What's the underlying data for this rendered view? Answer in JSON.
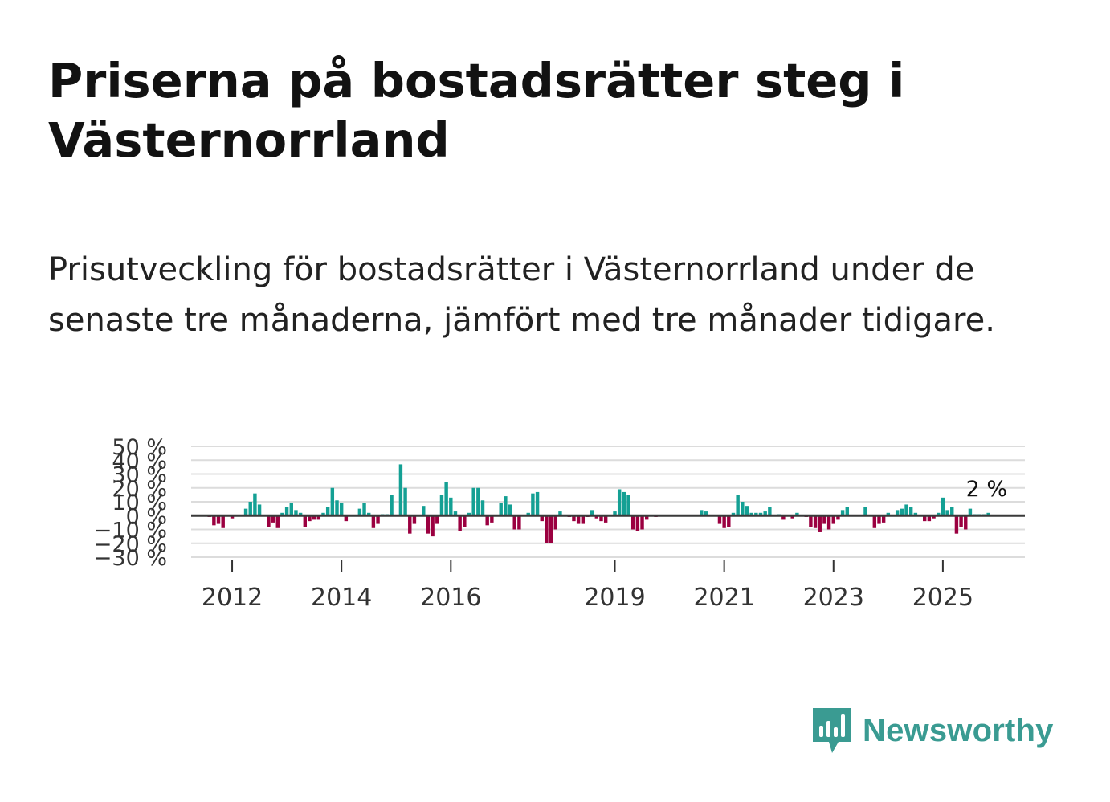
{
  "title": "Priserna på bostadsrätter steg i Västernorrland",
  "subtitle": "Prisutveckling för bostadsrätter i Västernorrland under de senaste tre månaderna, jämfört med tre månader tidigare.",
  "brand": {
    "name": "Newsworthy",
    "color": "#3a9b92"
  },
  "colors": {
    "positive": "#14a094",
    "negative": "#9b0040",
    "grid": "#dcdcdc",
    "zero": "#3a3a3a"
  },
  "chart_data": {
    "type": "bar",
    "title": "Prisutveckling för bostadsrätter i Västernorrland",
    "xlabel": "",
    "ylabel": "",
    "ylim": [
      -30,
      50
    ],
    "yticks": [
      50,
      40,
      30,
      20,
      10,
      0,
      -10,
      -20,
      -30
    ],
    "ytick_labels": [
      "50 %",
      "40 %",
      "30 %",
      "20 %",
      "10 %",
      "0 %",
      "−10 %",
      "−20 %",
      "−30 %"
    ],
    "xlim": [
      2011.25,
      2026.5
    ],
    "xticks": [
      2012,
      2014,
      2016,
      2019,
      2021,
      2023,
      2025
    ],
    "xtick_labels": [
      "2012",
      "2014",
      "2016",
      "2019",
      "2021",
      "2023",
      "2025"
    ],
    "start": 2011.5,
    "step": 0.0833333,
    "grid": true,
    "last_value_label": "2 %",
    "values": [
      0,
      -1,
      -7,
      -6,
      -9,
      0,
      -2,
      0,
      0,
      5,
      10,
      16,
      8,
      0,
      -8,
      -5,
      -9,
      2,
      6,
      9,
      4,
      2,
      -8,
      -4,
      -3,
      -3,
      2,
      6,
      20,
      11,
      9,
      -4,
      0,
      0,
      5,
      9,
      2,
      -9,
      -6,
      1,
      1,
      15,
      0,
      37,
      20,
      -13,
      -6,
      0,
      7,
      -13,
      -15,
      -6,
      15,
      24,
      13,
      3,
      -11,
      -8,
      2,
      20,
      20,
      11,
      -7,
      -5,
      0,
      9,
      14,
      8,
      -10,
      -10,
      0,
      2,
      16,
      17,
      -4,
      -20,
      -20,
      -10,
      3,
      0,
      -1,
      -4,
      -6,
      -6,
      -1,
      4,
      -2,
      -4,
      -5,
      0,
      3,
      19,
      17,
      15,
      -10,
      -11,
      -10,
      -3,
      0,
      -1,
      0,
      0,
      0,
      0,
      0,
      0,
      0,
      0,
      0,
      4,
      3,
      0,
      0,
      -6,
      -9,
      -8,
      2,
      15,
      10,
      7,
      2,
      2,
      2,
      3,
      6,
      0,
      1,
      -3,
      0,
      -2,
      2,
      0,
      -1,
      -8,
      -9,
      -12,
      -6,
      -10,
      -6,
      -3,
      4,
      6,
      0,
      0,
      0,
      6,
      0,
      -9,
      -6,
      -5,
      2,
      0,
      4,
      5,
      8,
      6,
      2,
      0,
      -4,
      -4,
      -2,
      2,
      13,
      4,
      6,
      -13,
      -8,
      -10,
      5,
      1,
      1,
      1,
      2
    ]
  }
}
